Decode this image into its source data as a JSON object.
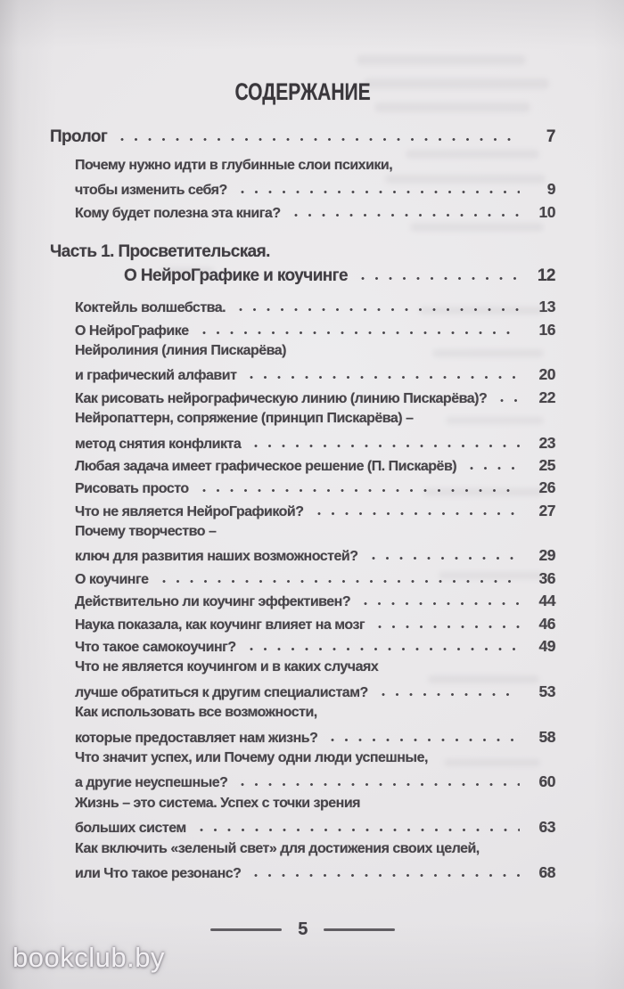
{
  "page": {
    "title": "СОДЕРЖАНИЕ",
    "footer": {
      "page_number": "5"
    },
    "watermark": "bookclub.by"
  },
  "colors": {
    "paper_background": "#e9e7e9",
    "text": "#48454a",
    "watermark_text": "#f8f6f9"
  },
  "toc": {
    "rows": [
      {
        "text": "Пролог",
        "page": "7",
        "style": "heading"
      },
      {
        "text": "Почему нужно идти в глубинные слои психики,",
        "style": "item",
        "gap": "gap-7"
      },
      {
        "text": "чтобы изменить себя?",
        "page": "9",
        "style": "item"
      },
      {
        "text": "Кому будет полезна эта книга?",
        "page": "10",
        "style": "item"
      },
      {
        "text": "Часть 1. Просветительская.",
        "style": "heading",
        "gap": "gap-19"
      },
      {
        "text": "О НейроГрафике и коучинге",
        "page": "12",
        "style": "part-indent"
      },
      {
        "text": "Коктейль волшебства.",
        "page": "13",
        "style": "item",
        "gap": "gap-8"
      },
      {
        "text": "О НейроГрафике",
        "page": "16",
        "style": "item"
      },
      {
        "text": "Нейролиния (линия Пискарёва)",
        "style": "item"
      },
      {
        "text": "и графический алфавит",
        "page": "20",
        "style": "item"
      },
      {
        "text": "Как рисовать нейрографическую линию (линию Пискарёва)?",
        "page": "22",
        "style": "item"
      },
      {
        "text": "Нейропаттерн, сопряжение (принцип Пискарёва) –",
        "style": "item"
      },
      {
        "text": "метод снятия конфликта",
        "page": "23",
        "style": "item"
      },
      {
        "text": "Любая задача имеет графическое решение (П. Пискарёв)",
        "page": "25",
        "style": "item"
      },
      {
        "text": "Рисовать просто",
        "page": "26",
        "style": "item"
      },
      {
        "text": "Что не является НейроГрафикой?",
        "page": "27",
        "style": "item"
      },
      {
        "text": "Почему творчество –",
        "style": "item"
      },
      {
        "text": "ключ для развития наших возможностей?",
        "page": "29",
        "style": "item"
      },
      {
        "text": "О коучинге",
        "page": "36",
        "style": "item"
      },
      {
        "text": "Действительно ли коучинг эффективен?",
        "page": "44",
        "style": "item"
      },
      {
        "text": "Наука показала, как коучинг влияет на мозг",
        "page": "46",
        "style": "item"
      },
      {
        "text": "Что такое самокоучинг?",
        "page": "49",
        "style": "item"
      },
      {
        "text": "Что не является коучингом и в каких случаях",
        "style": "item"
      },
      {
        "text": "лучше обратиться к другим специалистам?",
        "page": "53",
        "style": "item"
      },
      {
        "text": "Как использовать все возможности,",
        "style": "item"
      },
      {
        "text": "которые предоставляет нам жизнь?",
        "page": "58",
        "style": "item"
      },
      {
        "text": "Что значит успех, или Почему одни люди успешные,",
        "style": "item"
      },
      {
        "text": "а другие неуспешные?",
        "page": "60",
        "style": "item"
      },
      {
        "text": "Жизнь – это система. Успех с точки зрения",
        "style": "item"
      },
      {
        "text": "больших систем",
        "page": "63",
        "style": "item"
      },
      {
        "text": "Как включить «зеленый свет» для достижения своих целей,",
        "style": "item"
      },
      {
        "text": "или Что такое резонанс?",
        "page": "68",
        "style": "item"
      }
    ]
  }
}
